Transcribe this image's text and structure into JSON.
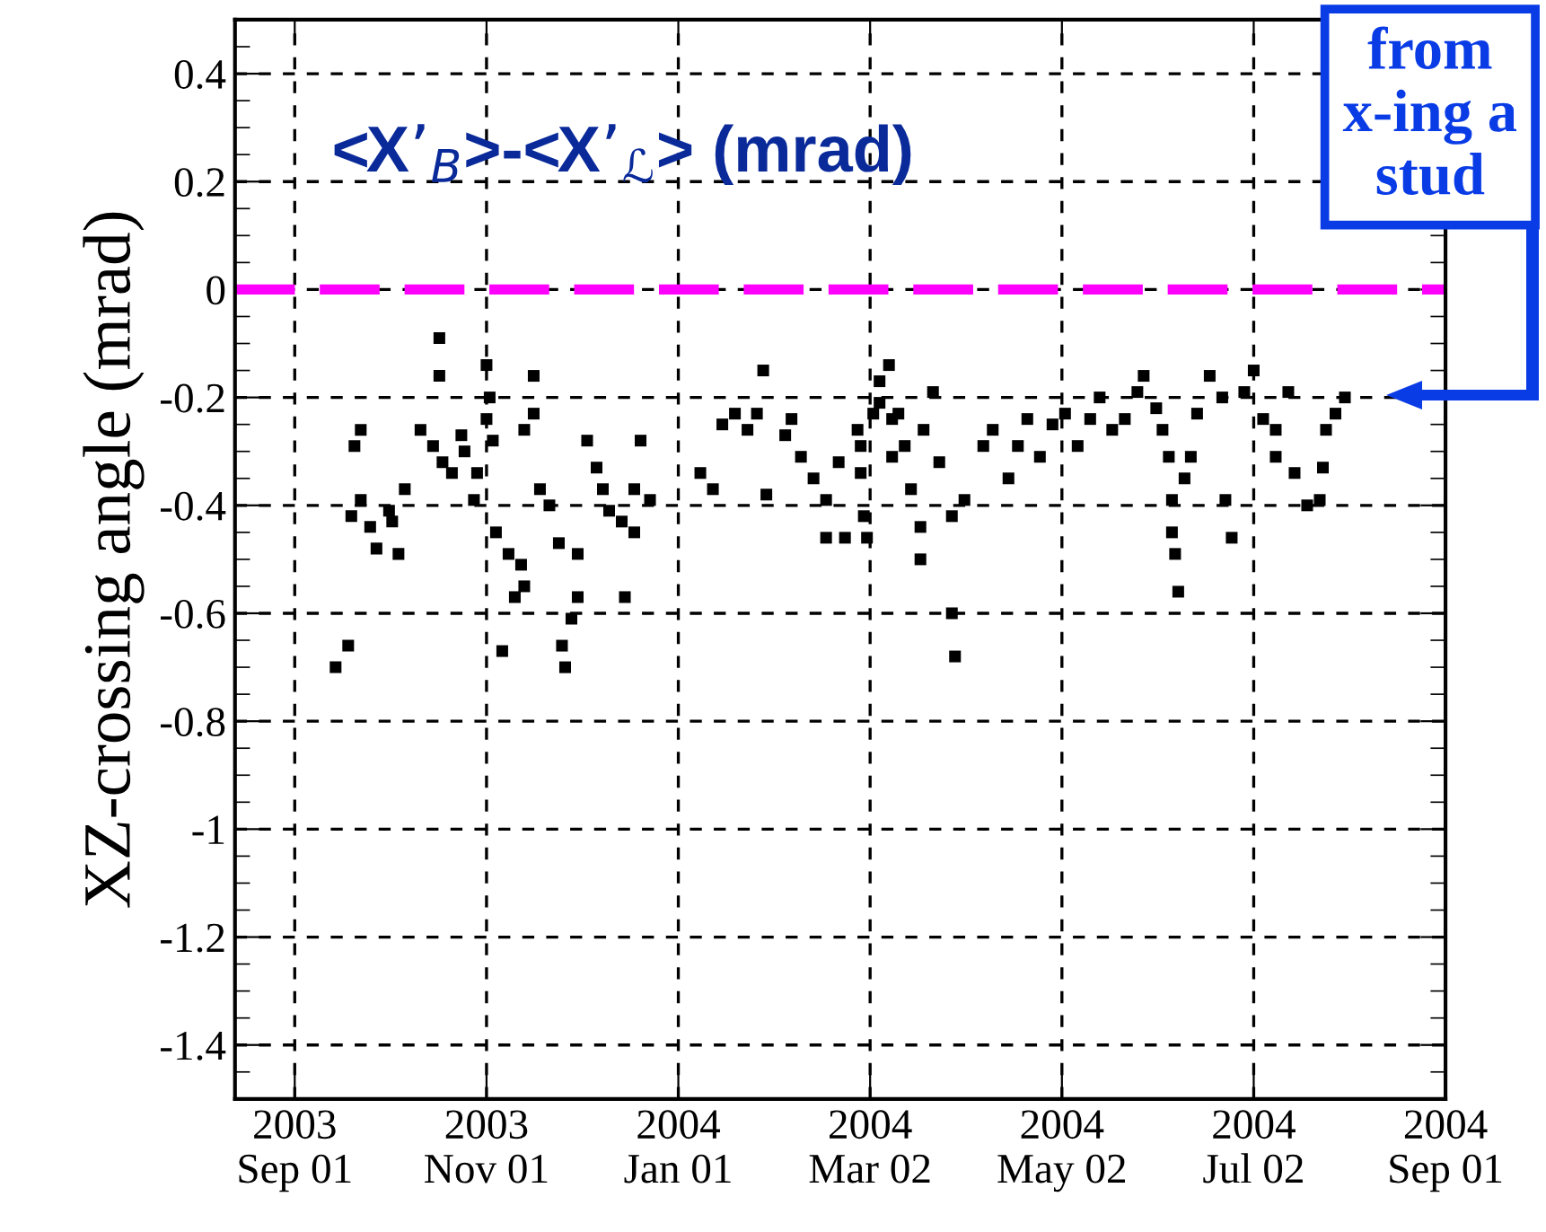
{
  "chart_data": {
    "type": "scatter",
    "ylabel": "XZ-crossing angle (mrad)",
    "annotations": [
      {
        "text": "<X’$_{B}$>-<X’$_{ℒ}$> (mrad)"
      },
      "from\nx-ing a\nstud"
    ],
    "xlim": [
      "2003-08-13",
      "2004-09-01"
    ],
    "xticks": [
      {
        "value": "2003-09-01",
        "label": "2003\nSep 01"
      },
      {
        "value": "2003-11-01",
        "label": "2003\nNov 01"
      },
      {
        "value": "2004-01-01",
        "label": "2004\nJan 01"
      },
      {
        "value": "2004-03-02",
        "label": "2004\nMar 02"
      },
      {
        "value": "2004-05-02",
        "label": "2004\nMay 02"
      },
      {
        "value": "2004-07-02",
        "label": "2004\nJul 02"
      },
      {
        "value": "2004-09-01",
        "label": "2004\nSep 01"
      }
    ],
    "ylim": [
      -1.5,
      0.5
    ],
    "yticks": [
      0.4,
      0.2,
      0,
      -0.2,
      -0.4,
      -0.6,
      -0.8,
      -1,
      -1.2,
      -1.4
    ],
    "grid": true,
    "marker": "square",
    "ref_lines": [
      {
        "axis": "y",
        "value": 0,
        "color": "#ff00ff",
        "line_style": "dashed"
      }
    ],
    "series": [
      {
        "color": "#000000",
        "x": [
          "2003-09-14",
          "2003-09-18",
          "2003-09-19",
          "2003-09-20",
          "2003-09-22",
          "2003-09-22",
          "2003-09-25",
          "2003-09-27",
          "2003-10-01",
          "2003-10-02",
          "2003-10-04",
          "2003-10-06",
          "2003-10-11",
          "2003-10-15",
          "2003-10-17",
          "2003-10-17",
          "2003-10-18",
          "2003-10-21",
          "2003-10-24",
          "2003-10-25",
          "2003-10-28",
          "2003-10-29",
          "2003-11-01",
          "2003-11-01",
          "2003-11-02",
          "2003-11-03",
          "2003-11-04",
          "2003-11-06",
          "2003-11-08",
          "2003-11-10",
          "2003-11-12",
          "2003-11-13",
          "2003-11-13",
          "2003-11-16",
          "2003-11-16",
          "2003-11-18",
          "2003-11-21",
          "2003-11-24",
          "2003-11-25",
          "2003-11-26",
          "2003-11-28",
          "2003-11-30",
          "2003-11-30",
          "2003-12-03",
          "2003-12-06",
          "2003-12-08",
          "2003-12-10",
          "2003-12-14",
          "2003-12-15",
          "2003-12-18",
          "2003-12-18",
          "2003-12-20",
          "2003-12-23",
          "2004-01-08",
          "2004-01-12",
          "2004-01-15",
          "2004-01-19",
          "2004-01-23",
          "2004-01-26",
          "2004-01-28",
          "2004-01-29",
          "2004-02-04",
          "2004-02-06",
          "2004-02-09",
          "2004-02-13",
          "2004-02-17",
          "2004-02-17",
          "2004-02-21",
          "2004-02-23",
          "2004-02-27",
          "2004-02-28",
          "2004-02-28",
          "2004-02-29",
          "2004-03-01",
          "2004-03-03",
          "2004-03-05",
          "2004-03-05",
          "2004-03-08",
          "2004-03-09",
          "2004-03-09",
          "2004-03-11",
          "2004-03-13",
          "2004-03-15",
          "2004-03-18",
          "2004-03-18",
          "2004-03-19",
          "2004-03-22",
          "2004-03-24",
          "2004-03-28",
          "2004-03-28",
          "2004-03-29",
          "2004-04-01",
          "2004-04-07",
          "2004-04-10",
          "2004-04-15",
          "2004-04-18",
          "2004-04-21",
          "2004-04-25",
          "2004-04-29",
          "2004-05-03",
          "2004-05-07",
          "2004-05-11",
          "2004-05-14",
          "2004-05-18",
          "2004-05-22",
          "2004-05-26",
          "2004-05-28",
          "2004-06-01",
          "2004-06-03",
          "2004-06-05",
          "2004-06-06",
          "2004-06-06",
          "2004-06-07",
          "2004-06-08",
          "2004-06-10",
          "2004-06-12",
          "2004-06-14",
          "2004-06-18",
          "2004-06-22",
          "2004-06-23",
          "2004-06-25",
          "2004-06-29",
          "2004-07-02",
          "2004-07-05",
          "2004-07-09",
          "2004-07-09",
          "2004-07-13",
          "2004-07-15",
          "2004-07-19",
          "2004-07-23",
          "2004-07-24",
          "2004-07-25",
          "2004-07-28",
          "2004-07-31"
        ],
        "values": [
          -0.7,
          -0.66,
          -0.42,
          -0.29,
          -0.26,
          -0.39,
          -0.44,
          -0.48,
          -0.41,
          -0.43,
          -0.49,
          -0.37,
          -0.26,
          -0.29,
          -0.09,
          -0.16,
          -0.32,
          -0.34,
          -0.27,
          -0.3,
          -0.39,
          -0.34,
          -0.14,
          -0.24,
          -0.2,
          -0.28,
          -0.45,
          -0.67,
          -0.49,
          -0.57,
          -0.51,
          -0.55,
          -0.26,
          -0.23,
          -0.16,
          -0.37,
          -0.4,
          -0.47,
          -0.66,
          -0.7,
          -0.61,
          -0.49,
          -0.57,
          -0.28,
          -0.33,
          -0.37,
          -0.41,
          -0.43,
          -0.57,
          -0.45,
          -0.37,
          -0.28,
          -0.39,
          -0.34,
          -0.37,
          -0.25,
          -0.23,
          -0.26,
          -0.23,
          -0.15,
          -0.38,
          -0.27,
          -0.24,
          -0.31,
          -0.35,
          -0.39,
          -0.46,
          -0.32,
          -0.46,
          -0.26,
          -0.34,
          -0.29,
          -0.42,
          -0.46,
          -0.23,
          -0.17,
          -0.21,
          -0.14,
          -0.24,
          -0.31,
          -0.23,
          -0.29,
          -0.37,
          -0.44,
          -0.5,
          -0.26,
          -0.19,
          -0.32,
          -0.42,
          -0.6,
          -0.68,
          -0.39,
          -0.29,
          -0.26,
          -0.35,
          -0.29,
          -0.24,
          -0.31,
          -0.25,
          -0.23,
          -0.29,
          -0.24,
          -0.2,
          -0.26,
          -0.24,
          -0.19,
          -0.16,
          -0.22,
          -0.26,
          -0.31,
          -0.39,
          -0.45,
          -0.49,
          -0.56,
          -0.35,
          -0.31,
          -0.23,
          -0.16,
          -0.2,
          -0.39,
          -0.46,
          -0.19,
          -0.15,
          -0.24,
          -0.26,
          -0.31,
          -0.19,
          -0.34,
          -0.4,
          -0.39,
          -0.33,
          -0.26,
          -0.23,
          -0.2
        ]
      }
    ]
  }
}
